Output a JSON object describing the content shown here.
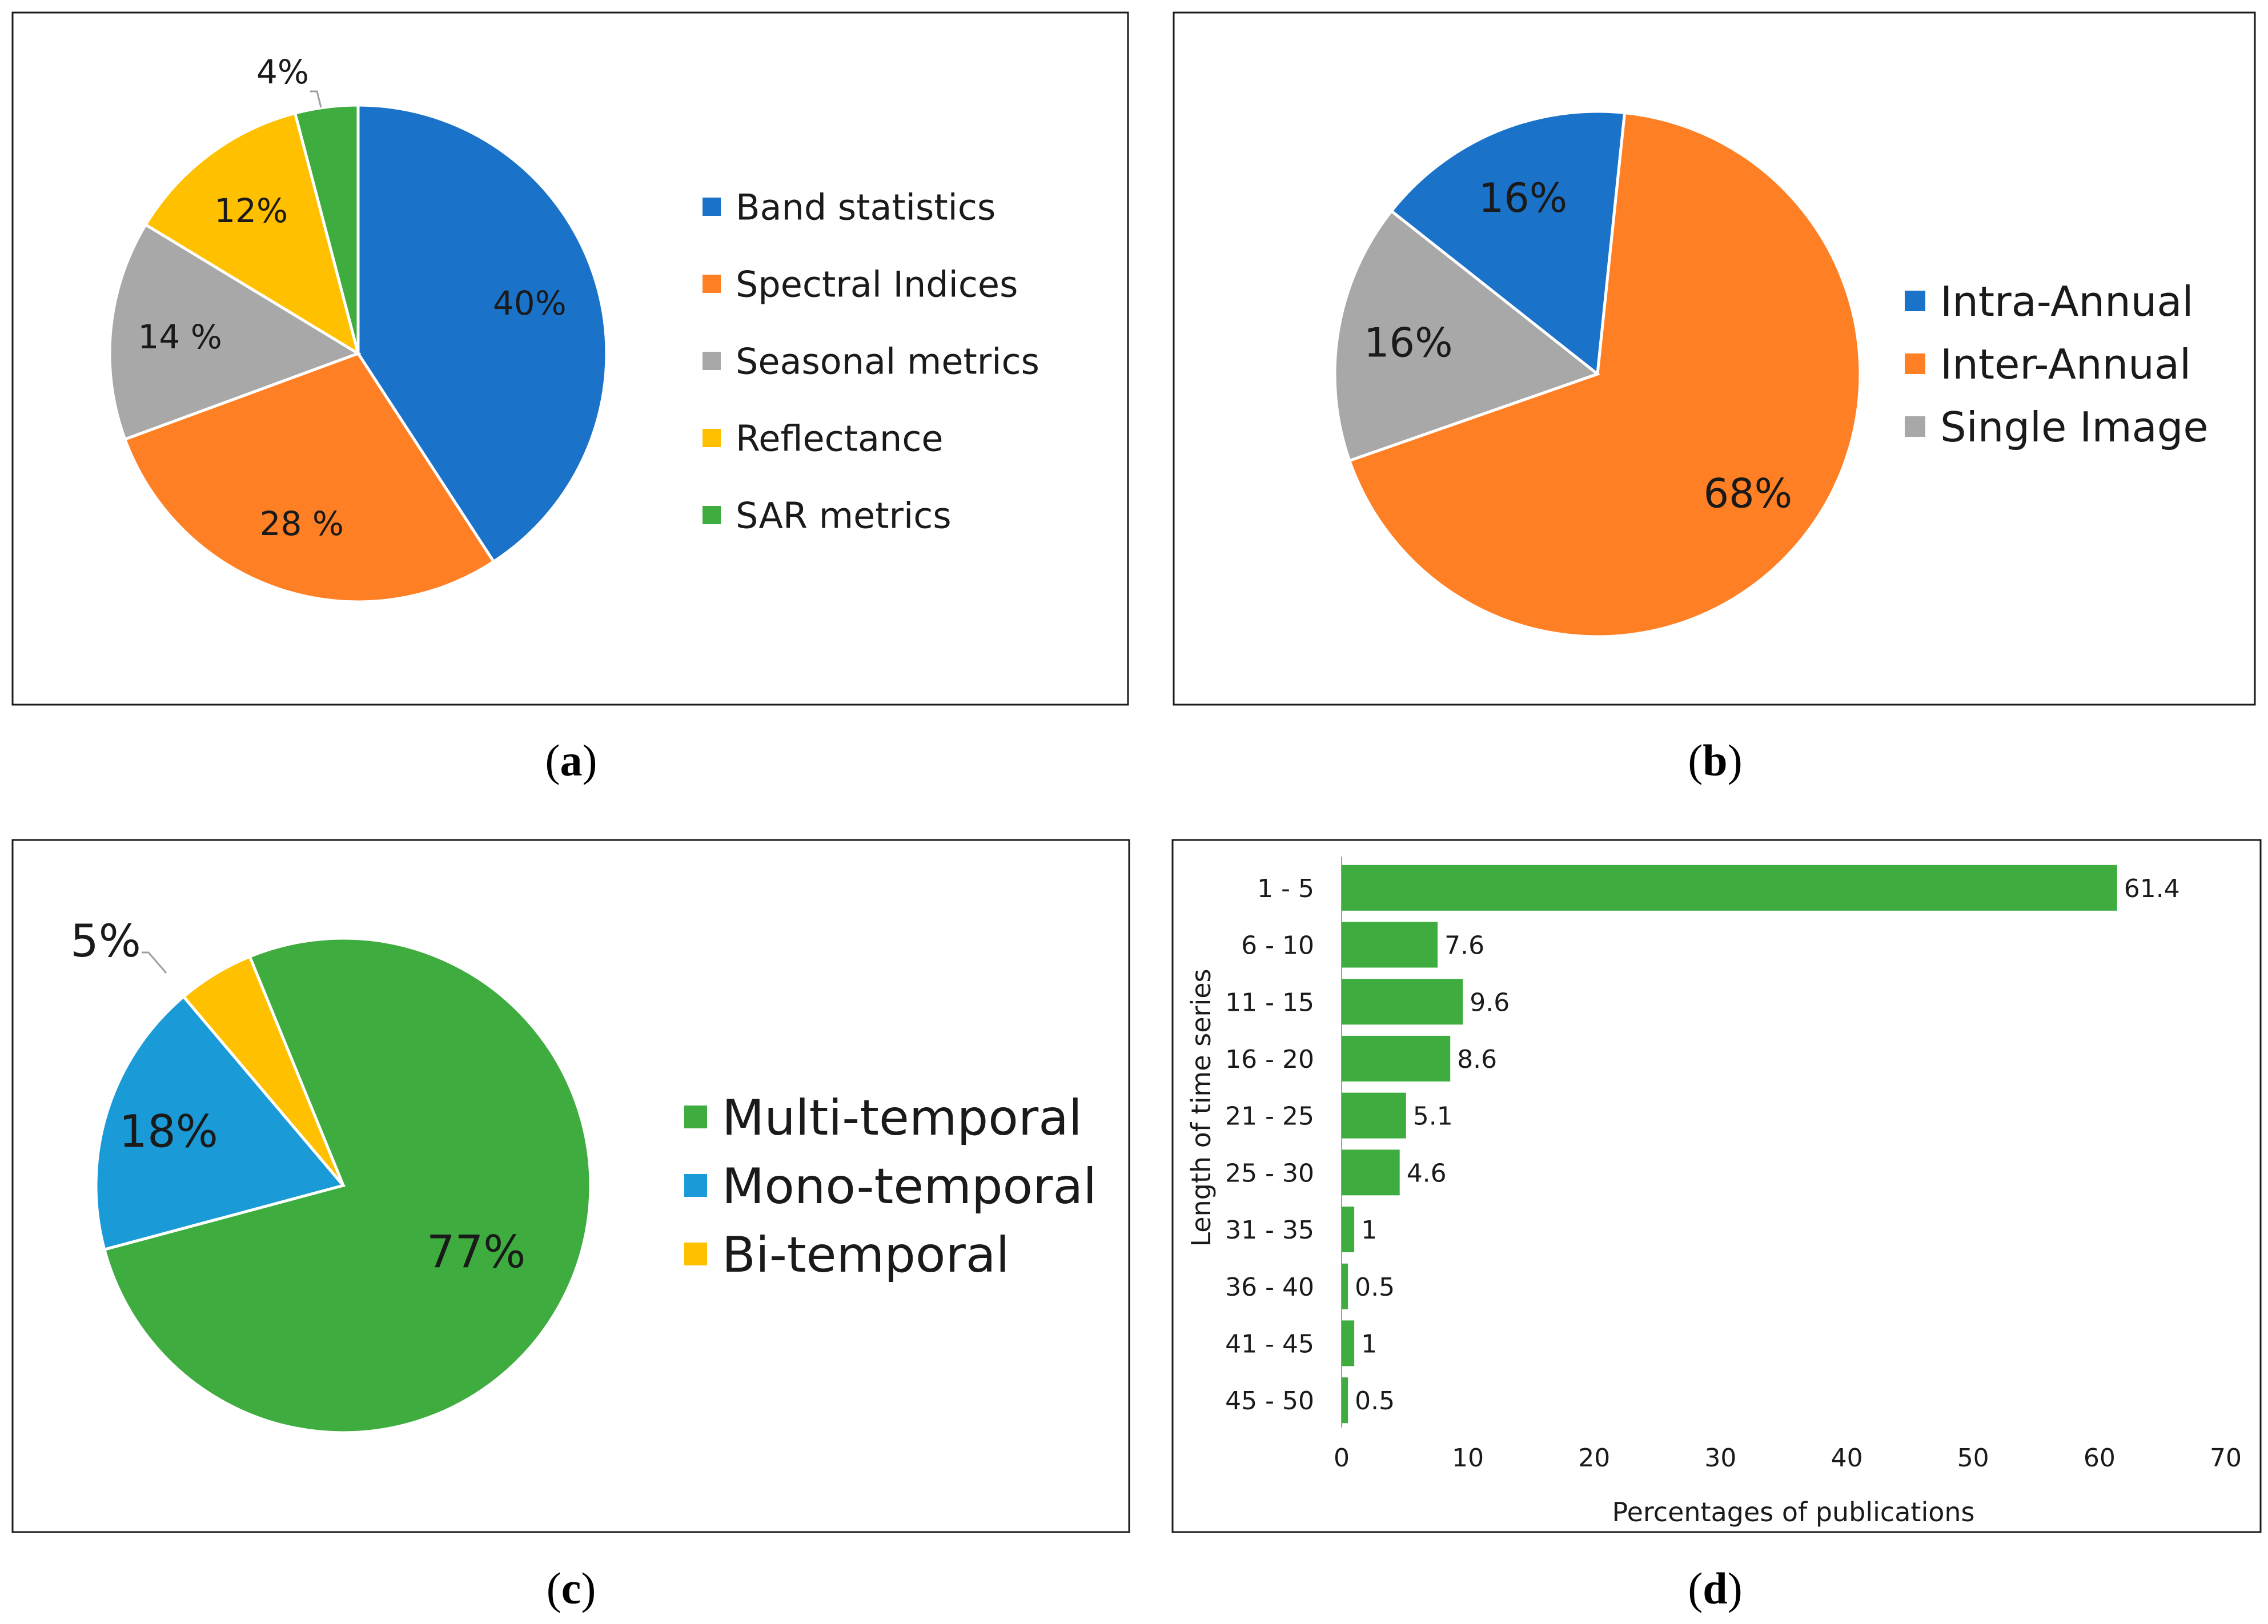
{
  "chart_data": [
    {
      "type": "pie",
      "panel": "a",
      "caption": "a",
      "slices": [
        {
          "name": "Band statistics",
          "value": 40,
          "label": "40%",
          "color": "#1a73c9"
        },
        {
          "name": "Spectral Indices",
          "value": 28,
          "label": "28 %",
          "color": "#ff7f24"
        },
        {
          "name": "Seasonal metrics",
          "value": 14,
          "label": "14 %",
          "color": "#a8a8a8"
        },
        {
          "name": "Reflectance",
          "value": 12,
          "label": "12%",
          "color": "#ffc000"
        },
        {
          "name": "SAR metrics",
          "value": 4,
          "label": "4%",
          "color": "#3eac3e"
        }
      ],
      "legend_position": "right"
    },
    {
      "type": "pie",
      "panel": "b",
      "caption": "b",
      "slices": [
        {
          "name": "Intra-Annual",
          "value": 16,
          "label": "16%",
          "color": "#1a73c9"
        },
        {
          "name": "Inter-Annual",
          "value": 68,
          "label": "68%",
          "color": "#ff7f24"
        },
        {
          "name": "Single Image",
          "value": 16,
          "label": "16%",
          "color": "#a8a8a8"
        }
      ],
      "legend_position": "right"
    },
    {
      "type": "pie",
      "panel": "c",
      "caption": "c",
      "slices": [
        {
          "name": "Multi-temporal",
          "value": 77,
          "label": "77%",
          "color": "#3eac3e"
        },
        {
          "name": "Mono-temporal",
          "value": 18,
          "label": "18%",
          "color": "#1a9ad6"
        },
        {
          "name": "Bi-temporal",
          "value": 5,
          "label": "5%",
          "color": "#ffc000"
        }
      ],
      "legend_position": "right"
    },
    {
      "type": "bar",
      "orientation": "horizontal",
      "panel": "d",
      "caption": "d",
      "categories": [
        "1 - 5",
        "6 - 10",
        "11 - 15",
        "16 - 20",
        "21 - 25",
        "25 - 30",
        "31 - 35",
        "36 - 40",
        "41 - 45",
        "45 - 50"
      ],
      "values": [
        61.4,
        7.6,
        9.6,
        8.6,
        5.1,
        4.6,
        1,
        0.5,
        1,
        0.5
      ],
      "value_labels": [
        "61.4",
        "7.6",
        "9.6",
        "8.6",
        "5.1",
        "4.6",
        "1",
        "0.5",
        "1",
        "0.5"
      ],
      "xlabel": "Percentages of publications",
      "ylabel": "Length of time series",
      "xlim": [
        0,
        70
      ],
      "xticks": [
        "0",
        "10",
        "20",
        "30",
        "40",
        "50",
        "60",
        "70"
      ],
      "bar_color": "#3eac3e",
      "grid": false
    }
  ]
}
